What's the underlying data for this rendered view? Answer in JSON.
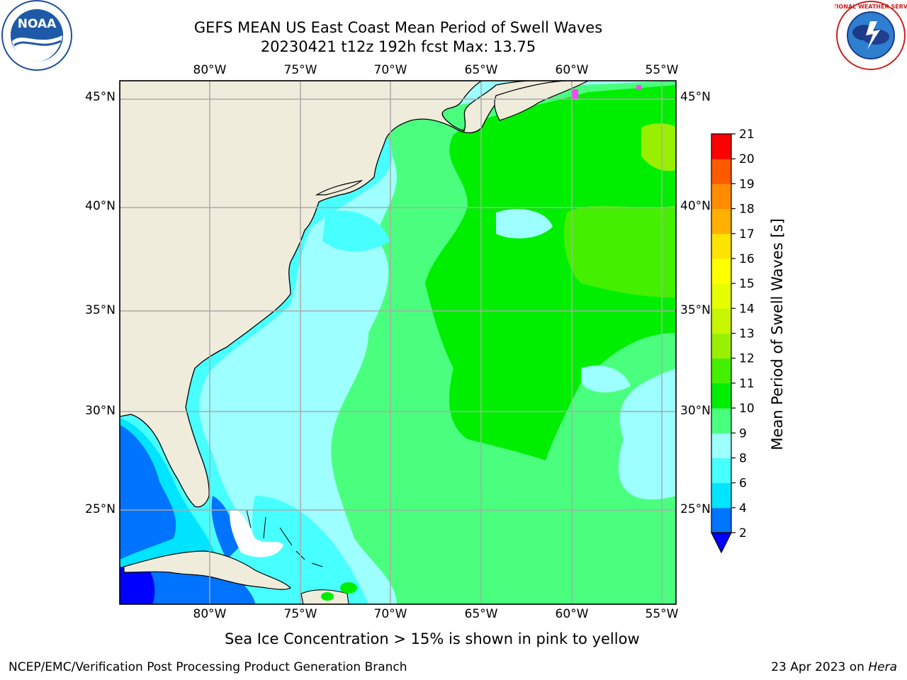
{
  "header": {
    "title_line1": "GEFS MEAN US East Coast Mean Period of Swell Waves",
    "title_line2": "20230421 t12z 192h fcst   Max: 13.75"
  },
  "logos": {
    "left": "noaa-logo",
    "right": "national-weather-service-logo",
    "left_text": "NOAA",
    "right_text": "NATIONAL WEATHER SERVICE"
  },
  "map": {
    "lon_labels": [
      "80°W",
      "75°W",
      "70°W",
      "65°W",
      "60°W",
      "55°W"
    ],
    "lat_labels": [
      "45°N",
      "40°N",
      "35°N",
      "30°N",
      "25°N"
    ],
    "lon_range": [
      -85,
      -54.5
    ],
    "lat_range": [
      20.5,
      46
    ],
    "grid": true,
    "land_color": "#efecdc",
    "coast_color": "#000000"
  },
  "colorbar": {
    "label": "Mean Period of Swell Waves [s]",
    "ticks": [
      "2",
      "4",
      "6",
      "8",
      "9",
      "10",
      "11",
      "12",
      "13",
      "14",
      "15",
      "16",
      "17",
      "18",
      "19",
      "20",
      "21"
    ],
    "colors": [
      "#0073ff",
      "#00e4ff",
      "#47ffff",
      "#9dffff",
      "#4bff7e",
      "#00ee00",
      "#44f000",
      "#98f000",
      "#c7f600",
      "#e6ff00",
      "#ffff00",
      "#ffe400",
      "#ffb000",
      "#ff8c00",
      "#ff5a00",
      "#ff2c00",
      "#ff0000"
    ],
    "extend_color": "#0000ff"
  },
  "footer": {
    "note": "Sea Ice Concentration > 15% is shown in pink to yellow",
    "credit": "NCEP/EMC/Verification Post Processing Product Generation Branch",
    "date": "23 Apr 2023 on ",
    "host": "Hera"
  }
}
